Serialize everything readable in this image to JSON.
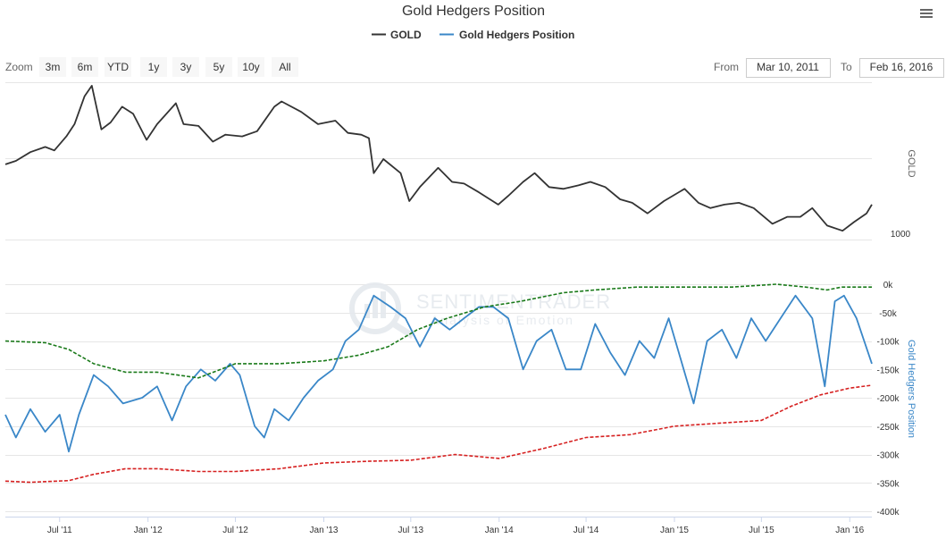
{
  "colors": {
    "gold": "#333333",
    "hedgers": "#3a87c8",
    "upper_band": "#1a7a1a",
    "lower_band": "#d62020",
    "hedgers_axis": "#3a87c8"
  },
  "toolbar": {
    "zoom_label": "Zoom",
    "zoom_buttons": [
      "3m",
      "6m",
      "YTD",
      "1y",
      "3y",
      "5y",
      "10y",
      "All"
    ],
    "from_label": "From",
    "from_value": "Mar 10, 2011",
    "to_label": "To",
    "to_value": "Feb 16, 2016",
    "menu_icon": "hamburger-menu-icon"
  },
  "watermark": {
    "title": "SENTIMENTRADER",
    "subtitle": "Analysis of Emotion",
    "icon": "sentimentrader-logo-icon"
  },
  "chart_data": {
    "type": "line",
    "title": "Gold Hedgers Position",
    "legend": {
      "position": "top-center",
      "items": [
        "GOLD",
        "Gold Hedgers Position"
      ]
    },
    "x_axis": {
      "type": "date",
      "range": [
        "2011-03-10",
        "2016-02-16"
      ],
      "tick_labels": [
        "Jul '11",
        "Jan '12",
        "Jul '12",
        "Jan '13",
        "Jul '13",
        "Jan '14",
        "Jul '14",
        "Jan '15",
        "Jul '15",
        "Jan '16"
      ],
      "tick_dates": [
        "2011-07-01",
        "2012-01-01",
        "2012-07-01",
        "2013-01-01",
        "2013-07-01",
        "2014-01-01",
        "2014-07-01",
        "2015-01-01",
        "2015-07-01",
        "2016-01-01"
      ]
    },
    "gold_axis": {
      "title": "GOLD",
      "tick_labels": [
        "1000"
      ],
      "range": [
        1000,
        1900
      ]
    },
    "hedgers_axis": {
      "title": "Gold Hedgers Position",
      "tick_labels": [
        "0k",
        "-50k",
        "-100k",
        "-150k",
        "-200k",
        "-250k",
        "-300k",
        "-350k",
        "-400k"
      ],
      "tick_values": [
        0,
        -50000,
        -100000,
        -150000,
        -200000,
        -250000,
        -300000,
        -350000,
        -400000
      ],
      "range": [
        -400000,
        0
      ]
    },
    "series": [
      {
        "name": "GOLD",
        "color": "#333333",
        "x": [
          "2011-03-10",
          "2011-04-01",
          "2011-05-01",
          "2011-06-01",
          "2011-06-20",
          "2011-07-15",
          "2011-08-01",
          "2011-08-22",
          "2011-09-06",
          "2011-09-26",
          "2011-10-15",
          "2011-11-08",
          "2011-12-01",
          "2011-12-29",
          "2012-01-20",
          "2012-02-28",
          "2012-03-15",
          "2012-04-15",
          "2012-05-15",
          "2012-06-10",
          "2012-07-15",
          "2012-08-15",
          "2012-09-20",
          "2012-10-05",
          "2012-11-15",
          "2012-12-20",
          "2013-01-25",
          "2013-02-20",
          "2013-03-20",
          "2013-04-05",
          "2013-04-15",
          "2013-05-05",
          "2013-06-10",
          "2013-06-28",
          "2013-07-20",
          "2013-08-27",
          "2013-09-25",
          "2013-10-20",
          "2013-11-20",
          "2013-12-30",
          "2014-01-20",
          "2014-02-20",
          "2014-03-16",
          "2014-04-15",
          "2014-05-15",
          "2014-06-15",
          "2014-07-10",
          "2014-08-10",
          "2014-09-10",
          "2014-10-05",
          "2014-11-06",
          "2014-12-10",
          "2015-01-22",
          "2015-02-20",
          "2015-03-17",
          "2015-04-15",
          "2015-05-15",
          "2015-06-15",
          "2015-07-24",
          "2015-08-24",
          "2015-09-20",
          "2015-10-15",
          "2015-11-15",
          "2015-12-17",
          "2016-01-10",
          "2016-02-05",
          "2016-02-16"
        ],
        "values": [
          1430,
          1450,
          1500,
          1530,
          1510,
          1590,
          1660,
          1820,
          1880,
          1630,
          1670,
          1760,
          1720,
          1570,
          1660,
          1780,
          1660,
          1650,
          1560,
          1600,
          1590,
          1620,
          1760,
          1790,
          1730,
          1660,
          1680,
          1610,
          1600,
          1580,
          1380,
          1460,
          1380,
          1220,
          1300,
          1410,
          1330,
          1320,
          1270,
          1200,
          1250,
          1330,
          1380,
          1300,
          1290,
          1310,
          1330,
          1300,
          1230,
          1210,
          1150,
          1220,
          1290,
          1210,
          1180,
          1200,
          1210,
          1180,
          1090,
          1130,
          1130,
          1180,
          1080,
          1050,
          1100,
          1150,
          1200
        ]
      },
      {
        "name": "Gold Hedgers Position",
        "color": "#3a87c8",
        "x": [
          "2011-03-10",
          "2011-04-01",
          "2011-05-01",
          "2011-06-01",
          "2011-07-01",
          "2011-07-20",
          "2011-08-10",
          "2011-09-10",
          "2011-10-10",
          "2011-11-10",
          "2011-12-20",
          "2012-01-20",
          "2012-02-20",
          "2012-03-20",
          "2012-04-20",
          "2012-05-20",
          "2012-06-20",
          "2012-07-10",
          "2012-08-10",
          "2012-08-30",
          "2012-09-20",
          "2012-10-20",
          "2012-11-20",
          "2012-12-20",
          "2013-01-20",
          "2013-02-15",
          "2013-03-15",
          "2013-04-15",
          "2013-05-20",
          "2013-06-20",
          "2013-07-20",
          "2013-08-20",
          "2013-09-20",
          "2013-10-20",
          "2013-11-20",
          "2013-12-20",
          "2014-01-20",
          "2014-02-20",
          "2014-03-20",
          "2014-04-20",
          "2014-05-20",
          "2014-06-20",
          "2014-07-20",
          "2014-08-20",
          "2014-09-20",
          "2014-10-20",
          "2014-11-20",
          "2014-12-20",
          "2015-01-10",
          "2015-02-10",
          "2015-03-10",
          "2015-04-10",
          "2015-05-10",
          "2015-06-10",
          "2015-07-10",
          "2015-08-10",
          "2015-09-10",
          "2015-10-15",
          "2015-11-10",
          "2015-12-01",
          "2015-12-20",
          "2016-01-15",
          "2016-02-16"
        ],
        "values": [
          -230000,
          -270000,
          -220000,
          -260000,
          -230000,
          -295000,
          -230000,
          -160000,
          -180000,
          -210000,
          -200000,
          -180000,
          -240000,
          -180000,
          -150000,
          -170000,
          -140000,
          -160000,
          -250000,
          -270000,
          -220000,
          -240000,
          -200000,
          -170000,
          -150000,
          -100000,
          -80000,
          -20000,
          -40000,
          -60000,
          -110000,
          -60000,
          -80000,
          -60000,
          -40000,
          -40000,
          -60000,
          -150000,
          -100000,
          -80000,
          -150000,
          -150000,
          -70000,
          -120000,
          -160000,
          -100000,
          -130000,
          -60000,
          -120000,
          -210000,
          -100000,
          -80000,
          -130000,
          -60000,
          -100000,
          -60000,
          -20000,
          -60000,
          -180000,
          -30000,
          -20000,
          -60000,
          -140000
        ]
      },
      {
        "name": "",
        "color": "#1a7a1a",
        "x": [
          "2011-03-10",
          "2011-06-01",
          "2011-07-20",
          "2011-09-10",
          "2011-11-15",
          "2012-01-20",
          "2012-04-15",
          "2012-07-01",
          "2012-10-01",
          "2013-01-01",
          "2013-03-15",
          "2013-05-15",
          "2013-07-15",
          "2013-09-15",
          "2013-12-01",
          "2014-02-15",
          "2014-05-15",
          "2014-07-20",
          "2014-10-15",
          "2015-01-15",
          "2015-05-01",
          "2015-08-01",
          "2015-10-01",
          "2015-11-15",
          "2015-12-15",
          "2016-02-16"
        ],
        "values": [
          -100000,
          -103000,
          -115000,
          -140000,
          -155000,
          -155000,
          -165000,
          -140000,
          -140000,
          -135000,
          -125000,
          -110000,
          -80000,
          -60000,
          -40000,
          -30000,
          -15000,
          -10000,
          -5000,
          -5000,
          -5000,
          0,
          -5000,
          -10000,
          -5000,
          -5000
        ]
      },
      {
        "name": "",
        "color": "#d62020",
        "x": [
          "2011-03-10",
          "2011-05-01",
          "2011-07-20",
          "2011-09-10",
          "2011-11-15",
          "2012-01-20",
          "2012-04-15",
          "2012-07-01",
          "2012-10-01",
          "2013-01-01",
          "2013-04-01",
          "2013-07-01",
          "2013-10-01",
          "2014-01-01",
          "2014-04-01",
          "2014-07-01",
          "2014-10-01",
          "2015-01-01",
          "2015-04-01",
          "2015-07-01",
          "2015-09-01",
          "2015-11-01",
          "2016-01-01",
          "2016-02-16"
        ],
        "values": [
          -347000,
          -349000,
          -346000,
          -335000,
          -325000,
          -325000,
          -330000,
          -330000,
          -325000,
          -315000,
          -312000,
          -310000,
          -300000,
          -307000,
          -290000,
          -270000,
          -265000,
          -250000,
          -245000,
          -240000,
          -215000,
          -195000,
          -183000,
          -178000
        ]
      }
    ]
  }
}
